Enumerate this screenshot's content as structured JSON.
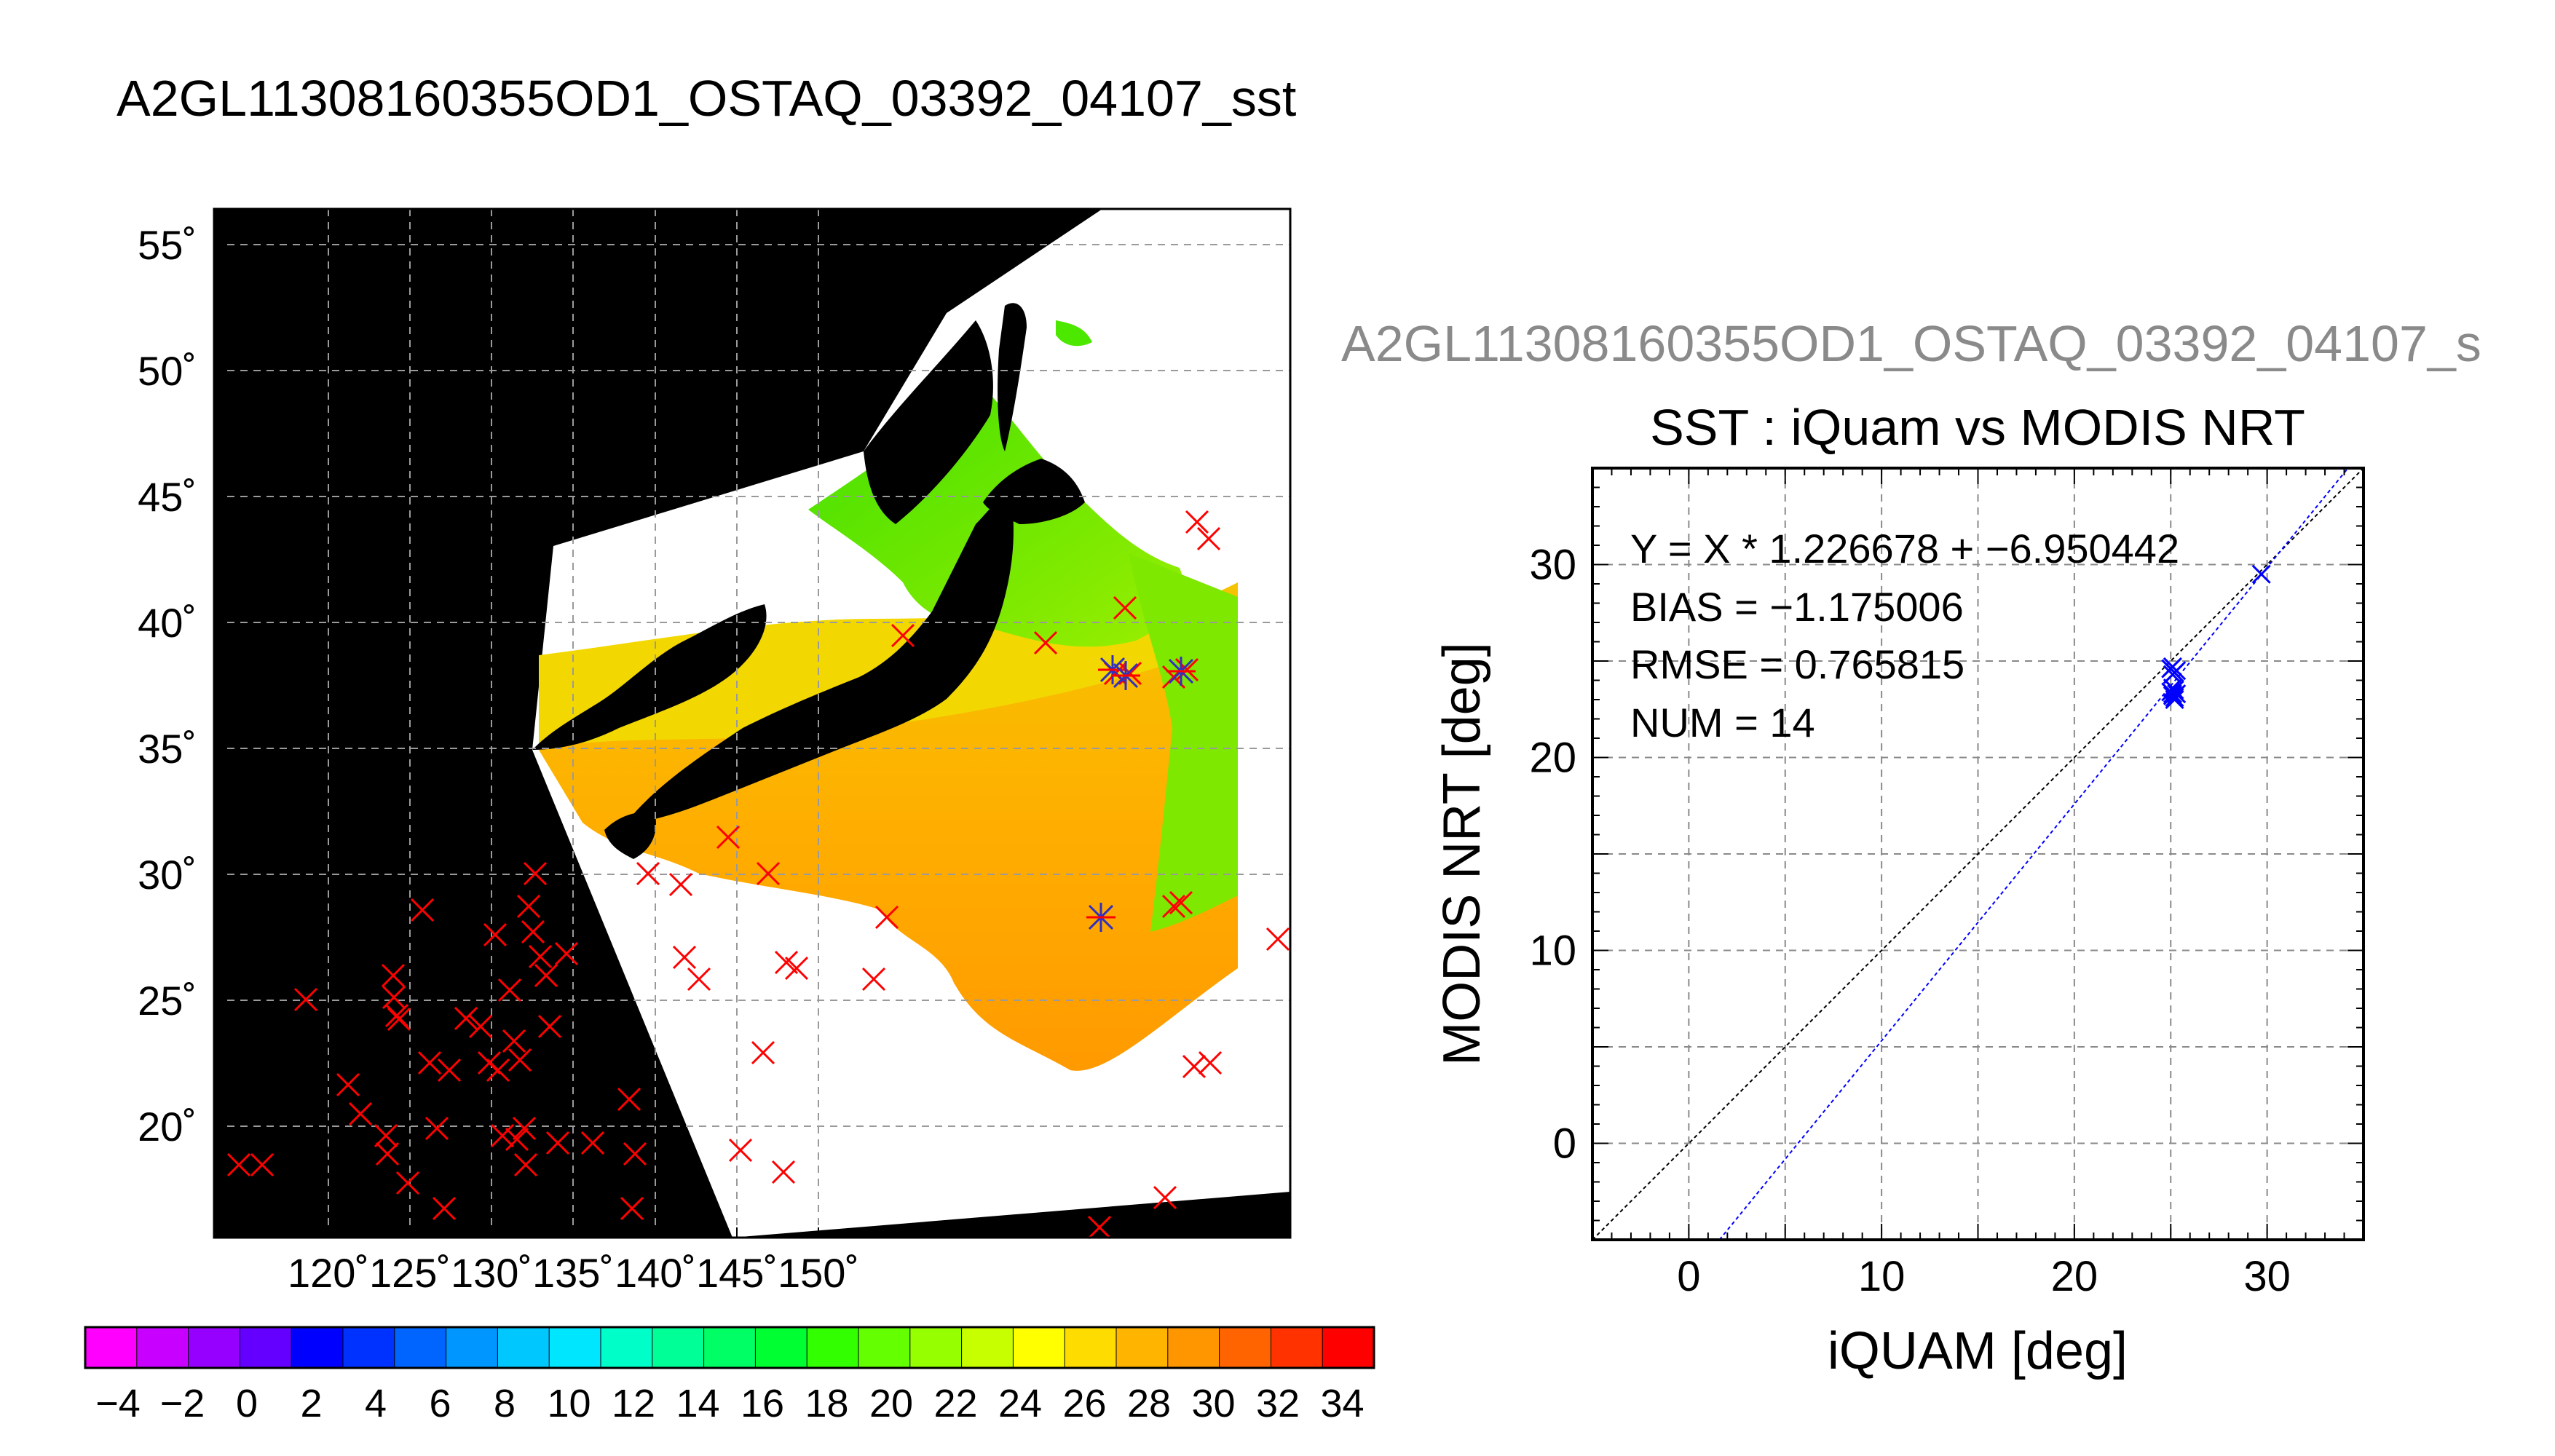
{
  "page": {
    "main_title": "A2GL11308160355OD1_OSTAQ_03392_04107_sst",
    "secondary_title": "A2GL11308160355OD1_OSTAQ_03392_04107_s"
  },
  "map": {
    "lon_ticks": [
      "120˚",
      "125˚",
      "130˚",
      "135˚",
      "140˚",
      "145˚",
      "150˚"
    ],
    "lat_ticks": [
      "55˚",
      "50˚",
      "45˚",
      "40˚",
      "35˚",
      "30˚",
      "25˚",
      "20˚"
    ],
    "colors": {
      "background": "#000000",
      "no_data": "#ffffff",
      "grid": "#9a9a9a",
      "iquam_marker": "#ff0000",
      "matched_marker": "#3030c0"
    },
    "colorbar_labels": [
      "−4",
      "−2",
      "0",
      "2",
      "4",
      "6",
      "8",
      "10",
      "12",
      "14",
      "16",
      "18",
      "20",
      "22",
      "24",
      "26",
      "28",
      "30",
      "32",
      "34"
    ],
    "colorbar_colors": [
      "#ff00ff",
      "#c800ff",
      "#9600ff",
      "#6400ff",
      "#0000ff",
      "#0032ff",
      "#0064ff",
      "#0096ff",
      "#00c8ff",
      "#00e6ff",
      "#00ffc8",
      "#00ff96",
      "#00ff64",
      "#00ff32",
      "#32ff00",
      "#64ff00",
      "#96ff00",
      "#c8ff00",
      "#ffff00",
      "#ffdc00",
      "#ffb400",
      "#ff9600",
      "#ff6400",
      "#ff3200",
      "#ff0000"
    ]
  },
  "chart_data": {
    "type": "scatter",
    "title": "SST : iQuam vs MODIS NRT",
    "xlabel": "iQUAM [deg]",
    "ylabel": "MODIS NRT [deg]",
    "xlim": [
      -5,
      35
    ],
    "ylim": [
      -5,
      35
    ],
    "x_ticks": [
      "0",
      "10",
      "20",
      "30"
    ],
    "y_ticks": [
      "0",
      "10",
      "20",
      "30"
    ],
    "grid": true,
    "stats": {
      "fit": "Y = X * 1.226678 + −6.950442",
      "bias": "BIAS = −1.175006",
      "rmse": "RMSE = 0.765815",
      "num": "NUM = 14"
    },
    "fit_line": {
      "slope": 1.226678,
      "intercept": -6.950442,
      "color": "#0000ff"
    },
    "identity_line": {
      "color": "#000000"
    },
    "points": [
      {
        "x": 25.1,
        "y": 24.7
      },
      {
        "x": 25.1,
        "y": 24.3
      },
      {
        "x": 25.2,
        "y": 23.5
      },
      {
        "x": 25.1,
        "y": 23.2
      },
      {
        "x": 25.3,
        "y": 23.3
      },
      {
        "x": 25.2,
        "y": 23.0
      },
      {
        "x": 25.0,
        "y": 23.4
      },
      {
        "x": 25.3,
        "y": 24.5
      },
      {
        "x": 25.2,
        "y": 23.1
      },
      {
        "x": 25.0,
        "y": 24.6
      },
      {
        "x": 25.1,
        "y": 23.3
      },
      {
        "x": 25.2,
        "y": 24.4
      },
      {
        "x": 25.1,
        "y": 23.6
      },
      {
        "x": 29.7,
        "y": 29.5
      }
    ],
    "point_color": "#0000ff"
  }
}
